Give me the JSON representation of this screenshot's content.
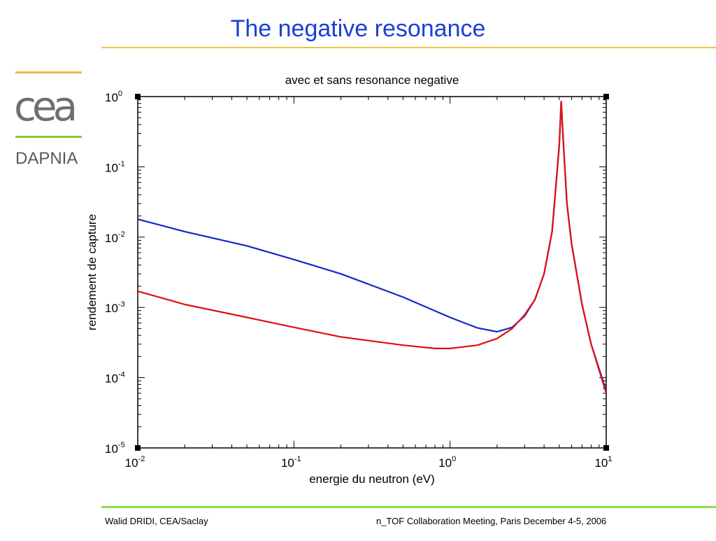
{
  "slide": {
    "title": "The negative resonance",
    "logo_text": "cea",
    "department": "DAPNIA"
  },
  "footer": {
    "left": "Walid DRIDI, CEA/Saclay",
    "right": "n_TOF Collaboration Meeting, Paris December 4-5, 2006"
  },
  "colors": {
    "title": "#1a3fd6",
    "series_blue": "#1428c8",
    "series_red": "#e01010",
    "accent_orange": "#f0c040",
    "accent_green": "#8ee04a"
  },
  "chart_data": {
    "type": "line",
    "title": "avec et sans resonance negative",
    "xlabel": "energie du neutron (eV)",
    "ylabel": "rendement de capture",
    "xscale": "log",
    "yscale": "log",
    "xlim": [
      0.01,
      10
    ],
    "ylim": [
      1e-05,
      1
    ],
    "grid": false,
    "x_ticks": [
      {
        "base": "10",
        "exp": "-2"
      },
      {
        "base": "10",
        "exp": "-1"
      },
      {
        "base": "10",
        "exp": "0"
      },
      {
        "base": "10",
        "exp": "1"
      }
    ],
    "y_ticks": [
      {
        "base": "10",
        "exp": "-5"
      },
      {
        "base": "10",
        "exp": "-4"
      },
      {
        "base": "10",
        "exp": "-3"
      },
      {
        "base": "10",
        "exp": "-2"
      },
      {
        "base": "10",
        "exp": "-1"
      },
      {
        "base": "10",
        "exp": "0"
      }
    ],
    "series": [
      {
        "color": "#1428c8",
        "x": [
          0.01,
          0.02,
          0.05,
          0.1,
          0.2,
          0.5,
          1.0,
          1.5,
          2.0,
          2.5,
          3.0,
          3.5,
          4.0,
          4.5,
          5.0,
          5.15,
          5.3,
          5.6,
          6.0,
          7.0,
          8.0,
          10.0
        ],
        "y": [
          0.018,
          0.012,
          0.0075,
          0.0048,
          0.003,
          0.0014,
          0.00072,
          0.00051,
          0.00045,
          0.00052,
          0.00075,
          0.0013,
          0.003,
          0.012,
          0.2,
          0.85,
          0.25,
          0.03,
          0.008,
          0.0011,
          0.0003,
          6.5e-05
        ]
      },
      {
        "color": "#e01010",
        "x": [
          0.01,
          0.02,
          0.05,
          0.1,
          0.2,
          0.5,
          0.8,
          1.0,
          1.5,
          2.0,
          2.5,
          3.0,
          3.5,
          4.0,
          4.5,
          5.0,
          5.15,
          5.3,
          5.6,
          6.0,
          7.0,
          8.0,
          10.0
        ],
        "y": [
          0.0017,
          0.0011,
          0.00072,
          0.00052,
          0.00038,
          0.00029,
          0.00026,
          0.00026,
          0.00029,
          0.00036,
          0.0005,
          0.00078,
          0.0013,
          0.003,
          0.012,
          0.2,
          0.85,
          0.25,
          0.03,
          0.008,
          0.0011,
          0.0003,
          6e-05
        ]
      }
    ]
  }
}
